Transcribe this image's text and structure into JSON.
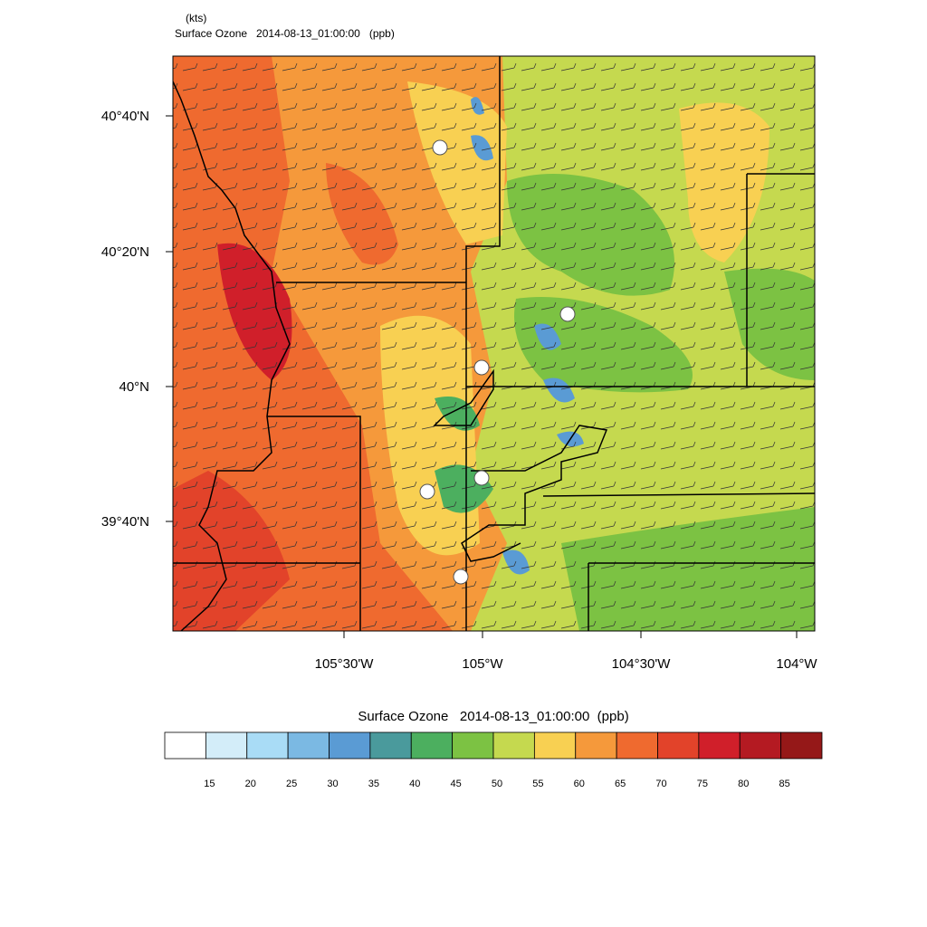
{
  "header": {
    "units": "(kts)",
    "title": "Surface Ozone   2014-08-13_01:00:00   (ppb)"
  },
  "map": {
    "lat_labels": [
      "40°40'N",
      "40°20'N",
      "40°N",
      "39°40'N"
    ],
    "lon_labels": [
      "105°30'W",
      "105°W",
      "104°30'W",
      "104°W"
    ]
  },
  "colorbar": {
    "title": "Surface Ozone   2014-08-13_01:00:00  (ppb)",
    "levels": [
      15,
      20,
      25,
      30,
      35,
      40,
      45,
      50,
      55,
      60,
      65,
      70,
      75,
      80,
      85
    ],
    "colors": [
      "#ffffff",
      "#d3edf9",
      "#a9dcf6",
      "#7bb9e3",
      "#5a9bd4",
      "#4a9a9c",
      "#4caf5f",
      "#7cc243",
      "#c5d94f",
      "#f8d052",
      "#f5993b",
      "#ef6a2f",
      "#e2432a",
      "#d01f2a",
      "#b41a22",
      "#951818"
    ]
  }
}
